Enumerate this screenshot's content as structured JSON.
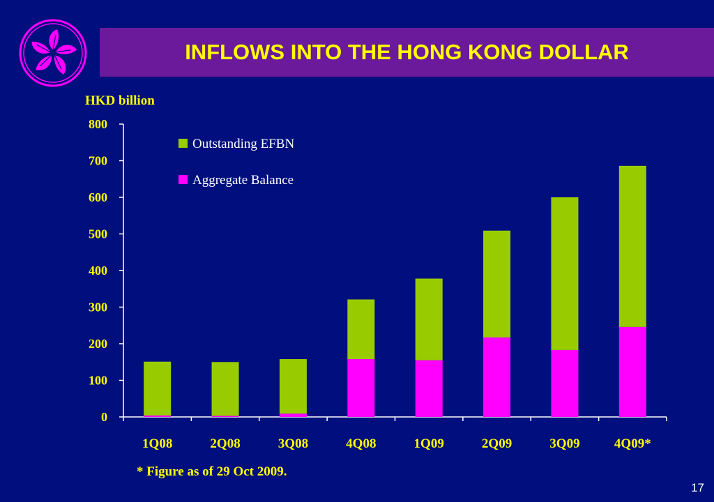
{
  "slide": {
    "title": "INFLOWS INTO THE HONG KONG DOLLAR",
    "unit_label": "HKD billion",
    "footnote": "* Figure as of 29 Oct 2009.",
    "page_number": "17"
  },
  "colors": {
    "background": "#000f7d",
    "title_bar": "#6a1a9b",
    "title_text": "#ffff00",
    "axis_text": "#ffff00",
    "efbn": "#99cc00",
    "aggregate_balance": "#ff00ff",
    "logo": "#ff00ff"
  },
  "chart_data": {
    "type": "bar",
    "stacked": true,
    "categories": [
      "1Q08",
      "2Q08",
      "3Q08",
      "4Q08",
      "1Q09",
      "2Q09",
      "3Q09",
      "4Q09*"
    ],
    "series": [
      {
        "name": "Aggregate Balance",
        "color": "#ff00ff",
        "values": [
          4,
          3,
          9,
          158,
          155,
          217,
          183,
          246
        ]
      },
      {
        "name": "Outstanding EFBN",
        "color": "#99cc00",
        "values": [
          147,
          147,
          149,
          163,
          223,
          292,
          417,
          440
        ]
      }
    ],
    "legend_order": [
      "Outstanding EFBN",
      "Aggregate Balance"
    ],
    "legend_position": "top-left",
    "ylabel": "HKD billion",
    "ylim": [
      0,
      800
    ],
    "yticks": [
      0,
      100,
      200,
      300,
      400,
      500,
      600,
      700,
      800
    ],
    "grid": false
  }
}
